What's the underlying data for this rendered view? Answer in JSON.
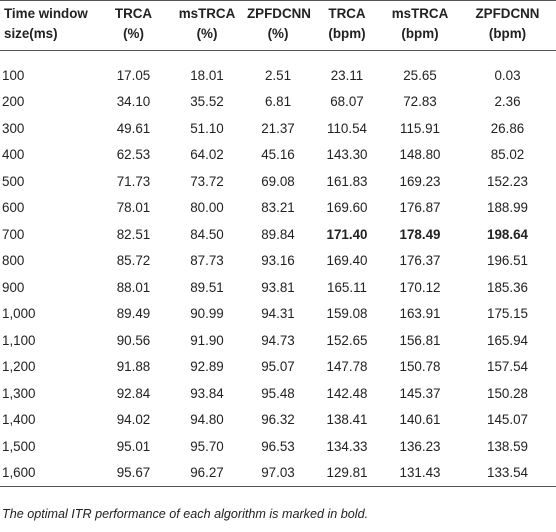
{
  "table": {
    "header_row1": [
      "Time window",
      "TRCA",
      "msTRCA",
      "ZPFDCNN",
      "TRCA",
      "msTRCA",
      "ZPFDCNN"
    ],
    "header_row2": [
      "size(ms)",
      "(%)",
      "(%)",
      "(%)",
      "(bpm)",
      "(bpm)",
      "(bpm)"
    ],
    "rows": [
      [
        "100",
        "17.05",
        "18.01",
        "2.51",
        "23.11",
        "25.65",
        "0.03"
      ],
      [
        "200",
        "34.10",
        "35.52",
        "6.81",
        "68.07",
        "72.83",
        "2.36"
      ],
      [
        "300",
        "49.61",
        "51.10",
        "21.37",
        "110.54",
        "115.91",
        "26.86"
      ],
      [
        "400",
        "62.53",
        "64.02",
        "45.16",
        "143.30",
        "148.80",
        "85.02"
      ],
      [
        "500",
        "71.73",
        "73.72",
        "69.08",
        "161.83",
        "169.23",
        "152.23"
      ],
      [
        "600",
        "78.01",
        "80.00",
        "83.21",
        "169.60",
        "176.87",
        "188.99"
      ],
      [
        "700",
        "82.51",
        "84.50",
        "89.84",
        "171.40",
        "178.49",
        "198.64"
      ],
      [
        "800",
        "85.72",
        "87.73",
        "93.16",
        "169.40",
        "176.37",
        "196.51"
      ],
      [
        "900",
        "88.01",
        "89.51",
        "93.81",
        "165.11",
        "170.12",
        "185.36"
      ],
      [
        "1,000",
        "89.49",
        "90.99",
        "94.31",
        "159.08",
        "163.91",
        "175.15"
      ],
      [
        "1,100",
        "90.56",
        "91.90",
        "94.73",
        "152.65",
        "156.81",
        "165.94"
      ],
      [
        "1,200",
        "91.88",
        "92.89",
        "95.07",
        "147.78",
        "150.78",
        "157.54"
      ],
      [
        "1,300",
        "92.84",
        "93.84",
        "95.48",
        "142.48",
        "145.37",
        "150.28"
      ],
      [
        "1,400",
        "94.02",
        "94.80",
        "96.32",
        "138.41",
        "140.61",
        "145.07"
      ],
      [
        "1,500",
        "95.01",
        "95.70",
        "96.53",
        "134.33",
        "136.23",
        "138.59"
      ],
      [
        "1,600",
        "95.67",
        "96.27",
        "97.03",
        "129.81",
        "131.43",
        "133.54"
      ]
    ],
    "bold_row_index": 6,
    "bold_columns": [
      4,
      5,
      6
    ]
  },
  "footnote": "The optimal ITR performance of each algorithm is marked in bold."
}
